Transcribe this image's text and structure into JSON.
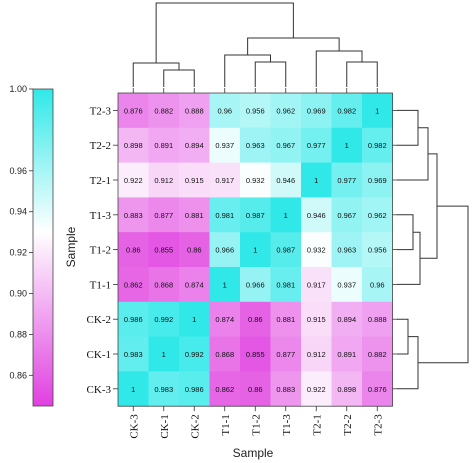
{
  "chart_data": {
    "type": "heatmap",
    "title": "",
    "xlabel": "Sample",
    "ylabel": "Sample",
    "columns": [
      "CK-3",
      "CK-1",
      "CK-2",
      "T1-1",
      "T1-2",
      "T1-3",
      "T2-1",
      "T2-2",
      "T2-3"
    ],
    "rows": [
      "T2-3",
      "T2-2",
      "T2-1",
      "T1-3",
      "T1-2",
      "T1-1",
      "CK-2",
      "CK-1",
      "CK-3"
    ],
    "values": [
      [
        0.876,
        0.882,
        0.888,
        0.96,
        0.956,
        0.962,
        0.969,
        0.982,
        1
      ],
      [
        0.898,
        0.891,
        0.894,
        0.937,
        0.963,
        0.967,
        0.977,
        1,
        0.982
      ],
      [
        0.922,
        0.912,
        0.915,
        0.917,
        0.932,
        0.946,
        1,
        0.977,
        0.969
      ],
      [
        0.883,
        0.877,
        0.881,
        0.981,
        0.987,
        1,
        0.946,
        0.967,
        0.962
      ],
      [
        0.86,
        0.855,
        0.86,
        0.966,
        1,
        0.987,
        0.932,
        0.963,
        0.956
      ],
      [
        0.862,
        0.868,
        0.874,
        1,
        0.966,
        0.981,
        0.917,
        0.937,
        0.96
      ],
      [
        0.986,
        0.992,
        1,
        0.874,
        0.86,
        0.881,
        0.915,
        0.894,
        0.888
      ],
      [
        0.983,
        1,
        0.992,
        0.868,
        0.855,
        0.877,
        0.912,
        0.891,
        0.882
      ],
      [
        1,
        0.983,
        0.986,
        0.862,
        0.86,
        0.883,
        0.922,
        0.898,
        0.876
      ]
    ],
    "colorbar": {
      "range": [
        0.845,
        1.0
      ],
      "ticks": [
        "0.86",
        "0.88",
        "0.90",
        "0.92",
        "0.94",
        "0.96",
        "1.00"
      ],
      "low_color": "#e040e0",
      "mid_color": "#ffffff",
      "high_color": "#30e8e8"
    },
    "grid": false,
    "legend": "left",
    "dendrogram": {
      "column_dendrogram": "top",
      "row_dendrogram": "right"
    }
  }
}
